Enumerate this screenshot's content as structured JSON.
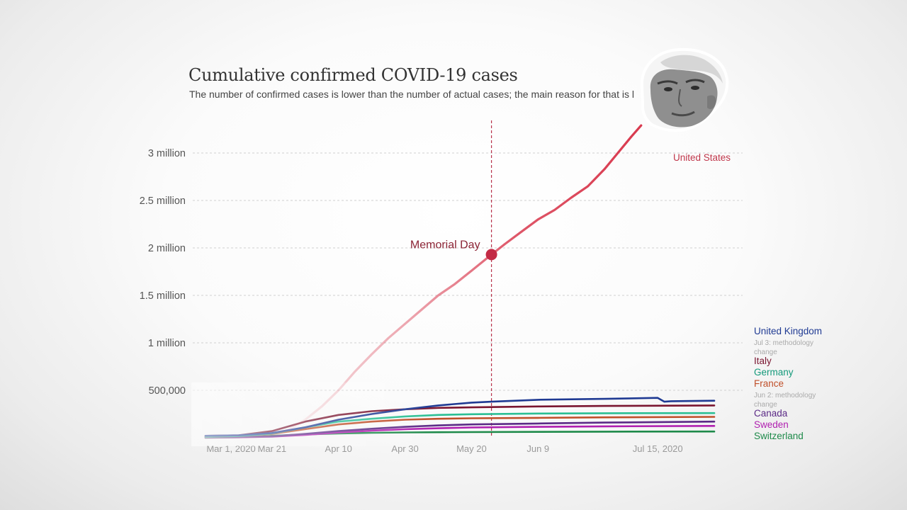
{
  "chart_data": {
    "type": "line",
    "title": "Cumulative confirmed COVID-19 cases",
    "subtitle": "The number of confirmed cases is lower than the number of actual cases; the main reason for that is l",
    "y_ticks": [
      {
        "value": 500000,
        "label": "500,000"
      },
      {
        "value": 1000000,
        "label": "1 million"
      },
      {
        "value": 1500000,
        "label": "1.5 million"
      },
      {
        "value": 2000000,
        "label": "2 million"
      },
      {
        "value": 2500000,
        "label": "2.5 million"
      },
      {
        "value": 3000000,
        "label": "3 million"
      }
    ],
    "x_ticks": [
      {
        "day": 0,
        "label": "Mar 1, 2020"
      },
      {
        "day": 20,
        "label": "Mar 21"
      },
      {
        "day": 40,
        "label": "Apr 10"
      },
      {
        "day": 60,
        "label": "Apr 30"
      },
      {
        "day": 80,
        "label": "May 20"
      },
      {
        "day": 100,
        "label": "Jun 9"
      },
      {
        "day": 136,
        "label": "Jul 15, 2020"
      }
    ],
    "x_domain_days": [
      0,
      153
    ],
    "ylim": [
      0,
      3100000
    ],
    "grid": true,
    "annotation": {
      "label": "Memorial Day",
      "day": 86,
      "value": 1930000
    },
    "series": [
      {
        "name": "United States",
        "color": "#d93a4f",
        "label_day": 160,
        "label_value": 2940000,
        "points": [
          [
            0,
            100
          ],
          [
            15,
            3000
          ],
          [
            20,
            25000
          ],
          [
            25,
            85000
          ],
          [
            30,
            190000
          ],
          [
            35,
            330000
          ],
          [
            40,
            500000
          ],
          [
            45,
            700000
          ],
          [
            50,
            880000
          ],
          [
            55,
            1050000
          ],
          [
            60,
            1200000
          ],
          [
            65,
            1350000
          ],
          [
            70,
            1500000
          ],
          [
            75,
            1620000
          ],
          [
            80,
            1760000
          ],
          [
            86,
            1930000
          ],
          [
            90,
            2040000
          ],
          [
            95,
            2170000
          ],
          [
            100,
            2300000
          ],
          [
            105,
            2400000
          ],
          [
            110,
            2530000
          ],
          [
            115,
            2650000
          ],
          [
            120,
            2830000
          ],
          [
            124,
            3000000
          ],
          [
            128,
            3170000
          ],
          [
            131,
            3290000
          ]
        ]
      },
      {
        "name": "United Kingdom",
        "color": "#1f3a93",
        "points": [
          [
            0,
            20000
          ],
          [
            10,
            25000
          ],
          [
            20,
            50000
          ],
          [
            30,
            110000
          ],
          [
            40,
            190000
          ],
          [
            50,
            250000
          ],
          [
            60,
            300000
          ],
          [
            70,
            340000
          ],
          [
            80,
            370000
          ],
          [
            86,
            380000
          ],
          [
            100,
            400000
          ],
          [
            120,
            410000
          ],
          [
            136,
            420000
          ],
          [
            138,
            380000
          ],
          [
            140,
            385000
          ],
          [
            153,
            390000
          ]
        ]
      },
      {
        "name": "Italy",
        "color": "#7a1530",
        "points": [
          [
            0,
            20000
          ],
          [
            10,
            25000
          ],
          [
            20,
            70000
          ],
          [
            30,
            170000
          ],
          [
            40,
            240000
          ],
          [
            50,
            280000
          ],
          [
            60,
            300000
          ],
          [
            70,
            315000
          ],
          [
            80,
            320000
          ],
          [
            100,
            330000
          ],
          [
            120,
            335000
          ],
          [
            153,
            340000
          ]
        ]
      },
      {
        "name": "Germany",
        "color": "#2bbf94",
        "points": [
          [
            0,
            10000
          ],
          [
            10,
            18000
          ],
          [
            20,
            45000
          ],
          [
            30,
            110000
          ],
          [
            40,
            170000
          ],
          [
            50,
            200000
          ],
          [
            60,
            225000
          ],
          [
            70,
            240000
          ],
          [
            80,
            248000
          ],
          [
            100,
            255000
          ],
          [
            120,
            258000
          ],
          [
            153,
            260000
          ]
        ]
      },
      {
        "name": "France",
        "color": "#c0502a",
        "points": [
          [
            0,
            12000
          ],
          [
            10,
            20000
          ],
          [
            20,
            40000
          ],
          [
            30,
            90000
          ],
          [
            40,
            140000
          ],
          [
            50,
            170000
          ],
          [
            60,
            190000
          ],
          [
            70,
            200000
          ],
          [
            80,
            205000
          ],
          [
            100,
            210000
          ],
          [
            120,
            215000
          ],
          [
            153,
            220000
          ]
        ]
      },
      {
        "name": "Canada",
        "color": "#5b2a86",
        "points": [
          [
            0,
            5000
          ],
          [
            10,
            8000
          ],
          [
            20,
            15000
          ],
          [
            30,
            40000
          ],
          [
            40,
            70000
          ],
          [
            50,
            95000
          ],
          [
            60,
            115000
          ],
          [
            70,
            130000
          ],
          [
            80,
            140000
          ],
          [
            100,
            150000
          ],
          [
            120,
            160000
          ],
          [
            153,
            170000
          ]
        ]
      },
      {
        "name": "Sweden",
        "color": "#b01fb0",
        "points": [
          [
            0,
            3000
          ],
          [
            10,
            5000
          ],
          [
            20,
            12000
          ],
          [
            30,
            30000
          ],
          [
            40,
            55000
          ],
          [
            50,
            75000
          ],
          [
            60,
            90000
          ],
          [
            70,
            100000
          ],
          [
            80,
            108000
          ],
          [
            100,
            115000
          ],
          [
            120,
            120000
          ],
          [
            153,
            125000
          ]
        ]
      },
      {
        "name": "Switzerland",
        "color": "#1e8a4a",
        "points": [
          [
            0,
            0
          ],
          [
            10,
            5000
          ],
          [
            20,
            20000
          ],
          [
            30,
            35000
          ],
          [
            40,
            45000
          ],
          [
            50,
            52000
          ],
          [
            60,
            56000
          ],
          [
            70,
            58000
          ],
          [
            80,
            60000
          ],
          [
            100,
            62000
          ],
          [
            120,
            64000
          ],
          [
            153,
            66000
          ]
        ]
      }
    ],
    "legend": [
      {
        "text": "United Kingdom",
        "color": "#1f3a93",
        "kind": "label"
      },
      {
        "text": "Jul 3: methodology",
        "kind": "note"
      },
      {
        "text": "change",
        "kind": "note"
      },
      {
        "text": "Italy",
        "color": "#7a1530",
        "kind": "label"
      },
      {
        "text": "Germany",
        "color": "#14997a",
        "kind": "label"
      },
      {
        "text": "France",
        "color": "#c0502a",
        "kind": "label"
      },
      {
        "text": "Jun 2: methodology",
        "kind": "note"
      },
      {
        "text": "change",
        "kind": "note"
      },
      {
        "text": "Canada",
        "color": "#5b2a86",
        "kind": "label"
      },
      {
        "text": "Sweden",
        "color": "#b01fb0",
        "kind": "label"
      },
      {
        "text": "Switzerland",
        "color": "#1e8a4a",
        "kind": "label"
      }
    ]
  }
}
